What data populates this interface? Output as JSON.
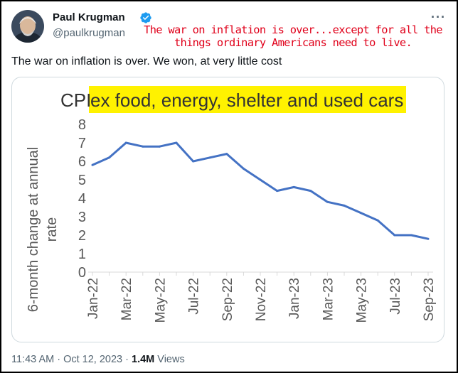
{
  "tweet": {
    "author_name": "Paul Krugman",
    "handle": "@paulkrugman",
    "text": "The war on inflation is over. We won, at very little cost",
    "more_icon": "more-horizontal-icon",
    "verified_icon": "verified-badge-icon",
    "overlay_line1": "The war on inflation is over...except for all the",
    "overlay_line2": "things ordinary Americans need to live.",
    "overlay_color": "#e0001a"
  },
  "footer": {
    "time": "11:43 AM",
    "separator": " · ",
    "date": "Oct 12, 2023",
    "views_count": "1.4M",
    "views_label": "Views"
  },
  "chart_data": {
    "type": "line",
    "title_prefix": "CPI",
    "title_highlight": "ex food, energy, shelter and used cars",
    "highlight_color": "#fff200",
    "ylabel_line1": "6-month change at annual",
    "ylabel_line2": "rate",
    "ylim": [
      0,
      8
    ],
    "yticks": [
      0,
      1,
      2,
      3,
      4,
      5,
      6,
      7,
      8
    ],
    "tick_labels": [
      "Jan-22",
      "Mar-22",
      "May-22",
      "Jul-22",
      "Sep-22",
      "Nov-22",
      "Jan-23",
      "Mar-23",
      "May-23",
      "Jul-23",
      "Sep-23"
    ],
    "line_color": "#4472c4",
    "grid": false,
    "series": [
      {
        "x": [
          "Jan-22",
          "Feb-22",
          "Mar-22",
          "Apr-22",
          "May-22",
          "Jun-22",
          "Jul-22",
          "Aug-22",
          "Sep-22",
          "Oct-22",
          "Nov-22",
          "Dec-22",
          "Jan-23",
          "Feb-23",
          "Mar-23",
          "Apr-23",
          "May-23",
          "Jun-23",
          "Jul-23",
          "Aug-23",
          "Sep-23"
        ],
        "values": [
          5.8,
          6.2,
          7.0,
          6.8,
          6.8,
          7.0,
          6.0,
          6.2,
          6.4,
          5.6,
          5.0,
          4.4,
          4.6,
          4.4,
          3.8,
          3.6,
          3.2,
          2.8,
          2.0,
          2.0,
          1.8
        ]
      }
    ]
  }
}
